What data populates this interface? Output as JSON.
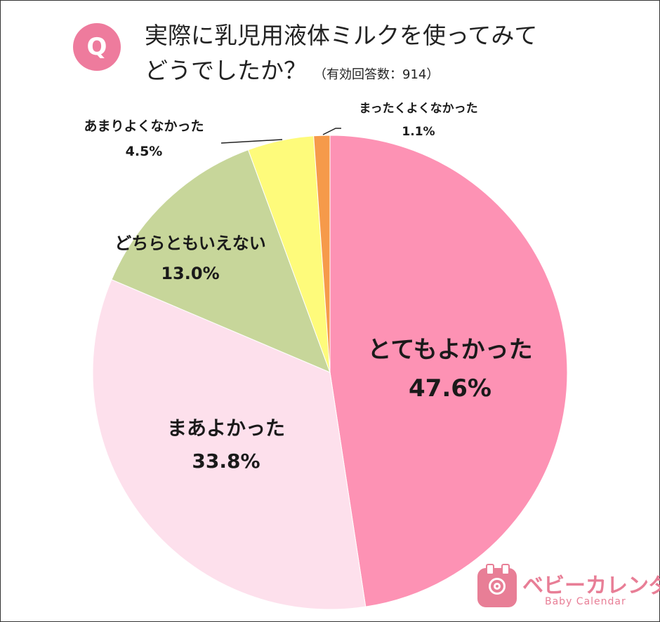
{
  "header": {
    "badge_letter": "Q",
    "question_line1": "実際に乳児用液体ミルクを使ってみて",
    "question_line2": "どうでしたか？",
    "respondents": "（有効回答数：914）"
  },
  "colors": {
    "accent": "#ee7b9d",
    "logo": "#e87e96"
  },
  "chart_data": {
    "type": "pie",
    "start_angle_deg": 0,
    "direction": "clockwise",
    "slices": [
      {
        "label": "とてもよかった",
        "value": 47.6,
        "value_text": "47.6%",
        "color": "#fd92b4"
      },
      {
        "label": "まあよかった",
        "value": 33.8,
        "value_text": "33.8%",
        "color": "#fde0ec"
      },
      {
        "label": "どちらともいえない",
        "value": 13.0,
        "value_text": "13.0%",
        "color": "#c7d69a"
      },
      {
        "label": "あまりよくなかった",
        "value": 4.5,
        "value_text": "4.5%",
        "color": "#fefb7b"
      },
      {
        "label": "まったくよくなかった",
        "value": 1.1,
        "value_text": "1.1%",
        "color": "#f69a4a"
      }
    ]
  },
  "logo": {
    "name": "ベビーカレンダー",
    "subtitle": "Baby Calendar",
    "icon": "calendar-baby-icon"
  }
}
